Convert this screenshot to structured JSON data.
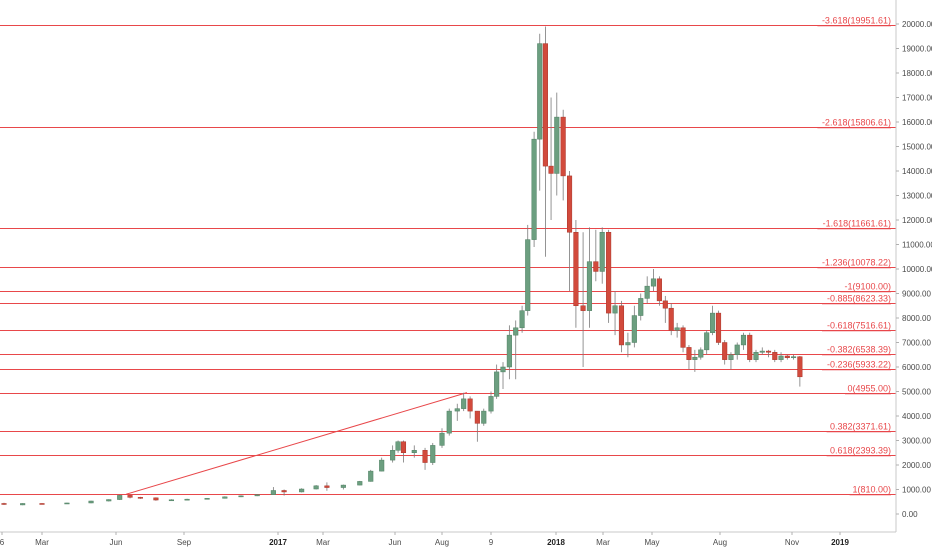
{
  "colors": {
    "up": "#6c9f80",
    "down": "#d24a3c",
    "fib_line": "#e8474a",
    "trend_line": "#e8474a",
    "axis_text": "#4a4a4a",
    "background": "#ffffff"
  },
  "chart_data": {
    "type": "candlestick",
    "interval": "weekly",
    "y_axis": {
      "range": [
        -500,
        20800
      ],
      "ticks": [
        "0.00",
        "1000.00",
        "2000.00",
        "3000.00",
        "4000.00",
        "5000.00",
        "6000.00",
        "7000.00",
        "8000.00",
        "9000.00",
        "10000.00",
        "11000.00",
        "12000.00",
        "13000.00",
        "14000.00",
        "15000.00",
        "16000.00",
        "17000.00",
        "18000.00",
        "19000.00",
        "20000.00"
      ],
      "tick_values": [
        0,
        1000,
        2000,
        3000,
        4000,
        5000,
        6000,
        7000,
        8000,
        9000,
        10000,
        11000,
        12000,
        13000,
        14000,
        15000,
        16000,
        17000,
        18000,
        19000,
        20000
      ],
      "position": "right"
    },
    "x_axis": {
      "ticks": [
        {
          "label": "6",
          "date": "2016-01-01",
          "bold": false
        },
        {
          "label": "Mar",
          "date": "2016-03-01",
          "bold": false
        },
        {
          "label": "Jun",
          "date": "2016-06-01",
          "bold": false
        },
        {
          "label": "Sep",
          "date": "2016-09-01",
          "bold": false
        },
        {
          "label": "2017",
          "date": "2017-01-01",
          "bold": true
        },
        {
          "label": "Mar",
          "date": "2017-03-01",
          "bold": false
        },
        {
          "label": "Jun",
          "date": "2017-06-01",
          "bold": false
        },
        {
          "label": "Aug",
          "date": "2017-08-01",
          "bold": false
        },
        {
          "label": "9",
          "date": "2017-10-01",
          "bold": false
        },
        {
          "label": "2018",
          "date": "2018-01-01",
          "bold": true
        },
        {
          "label": "Mar",
          "date": "2018-03-01",
          "bold": false
        },
        {
          "label": "May",
          "date": "2018-05-01",
          "bold": false
        },
        {
          "label": "Aug",
          "date": "2018-08-01",
          "bold": false
        },
        {
          "label": "Nov",
          "date": "2018-11-01",
          "bold": false
        },
        {
          "label": "2019",
          "date": "2019-01-01",
          "bold": true
        }
      ]
    },
    "fib_levels": [
      {
        "label": "-3.618(19951.61)",
        "value": 19951.61
      },
      {
        "label": "-2.618(15806.61)",
        "value": 15806.61
      },
      {
        "label": "-1.618(11661.61)",
        "value": 11661.61
      },
      {
        "label": "-1.236(10078.22)",
        "value": 10078.22
      },
      {
        "label": "-1(9100.00)",
        "value": 9100.0
      },
      {
        "label": "-0.885(8623.33)",
        "value": 8623.33
      },
      {
        "label": "-0.618(7516.61)",
        "value": 7516.61
      },
      {
        "label": "-0.382(6538.39)",
        "value": 6538.39
      },
      {
        "label": "-0.236(5933.22)",
        "value": 5933.22
      },
      {
        "label": "0(4955.00)",
        "value": 4955.0
      },
      {
        "label": "0.382(3371.61)",
        "value": 3371.61
      },
      {
        "label": "0.618(2393.39)",
        "value": 2393.39
      },
      {
        "label": "1(810.00)",
        "value": 810.0
      }
    ],
    "fib_start_date": "2015-12-01",
    "trend_line": {
      "from": {
        "date": "2016-06-15",
        "value": 810
      },
      "to": {
        "date": "2017-09-01",
        "value": 4955
      }
    },
    "candles": [
      {
        "d": "2015-12-07",
        "o": 390,
        "h": 420,
        "l": 360,
        "c": 380
      },
      {
        "d": "2016-01-04",
        "o": 430,
        "h": 460,
        "l": 370,
        "c": 410
      },
      {
        "d": "2016-02-01",
        "o": 370,
        "h": 440,
        "l": 360,
        "c": 430
      },
      {
        "d": "2016-03-01",
        "o": 430,
        "h": 440,
        "l": 400,
        "c": 415
      },
      {
        "d": "2016-04-01",
        "o": 415,
        "h": 460,
        "l": 410,
        "c": 450
      },
      {
        "d": "2016-05-01",
        "o": 450,
        "h": 540,
        "l": 440,
        "c": 530
      },
      {
        "d": "2016-05-23",
        "o": 530,
        "h": 600,
        "l": 510,
        "c": 590
      },
      {
        "d": "2016-06-06",
        "o": 590,
        "h": 780,
        "l": 570,
        "c": 760
      },
      {
        "d": "2016-06-20",
        "o": 760,
        "h": 780,
        "l": 640,
        "c": 680
      },
      {
        "d": "2016-07-04",
        "o": 680,
        "h": 700,
        "l": 620,
        "c": 660
      },
      {
        "d": "2016-07-25",
        "o": 660,
        "h": 680,
        "l": 540,
        "c": 570
      },
      {
        "d": "2016-08-15",
        "o": 570,
        "h": 600,
        "l": 550,
        "c": 580
      },
      {
        "d": "2016-09-05",
        "o": 580,
        "h": 620,
        "l": 570,
        "c": 605
      },
      {
        "d": "2016-10-01",
        "o": 605,
        "h": 650,
        "l": 600,
        "c": 640
      },
      {
        "d": "2016-10-24",
        "o": 640,
        "h": 720,
        "l": 630,
        "c": 700
      },
      {
        "d": "2016-11-14",
        "o": 700,
        "h": 760,
        "l": 690,
        "c": 740
      },
      {
        "d": "2016-12-05",
        "o": 740,
        "h": 800,
        "l": 730,
        "c": 790
      },
      {
        "d": "2016-12-26",
        "o": 790,
        "h": 1100,
        "l": 780,
        "c": 960
      },
      {
        "d": "2017-01-09",
        "o": 960,
        "h": 1000,
        "l": 750,
        "c": 900
      },
      {
        "d": "2017-02-01",
        "o": 900,
        "h": 1050,
        "l": 880,
        "c": 1020
      },
      {
        "d": "2017-02-20",
        "o": 1020,
        "h": 1180,
        "l": 1000,
        "c": 1150
      },
      {
        "d": "2017-03-06",
        "o": 1150,
        "h": 1290,
        "l": 950,
        "c": 1080
      },
      {
        "d": "2017-03-27",
        "o": 1080,
        "h": 1200,
        "l": 1000,
        "c": 1180
      },
      {
        "d": "2017-04-17",
        "o": 1180,
        "h": 1350,
        "l": 1170,
        "c": 1330
      },
      {
        "d": "2017-05-01",
        "o": 1330,
        "h": 1800,
        "l": 1320,
        "c": 1750
      },
      {
        "d": "2017-05-15",
        "o": 1750,
        "h": 2300,
        "l": 1740,
        "c": 2200
      },
      {
        "d": "2017-05-29",
        "o": 2200,
        "h": 2800,
        "l": 2100,
        "c": 2600
      },
      {
        "d": "2017-06-05",
        "o": 2600,
        "h": 3000,
        "l": 2500,
        "c": 2950
      },
      {
        "d": "2017-06-12",
        "o": 2950,
        "h": 3000,
        "l": 2100,
        "c": 2500
      },
      {
        "d": "2017-06-26",
        "o": 2500,
        "h": 2800,
        "l": 2300,
        "c": 2600
      },
      {
        "d": "2017-07-10",
        "o": 2600,
        "h": 2700,
        "l": 1800,
        "c": 2100
      },
      {
        "d": "2017-07-20",
        "o": 2100,
        "h": 2900,
        "l": 2000,
        "c": 2800
      },
      {
        "d": "2017-08-01",
        "o": 2800,
        "h": 3500,
        "l": 2700,
        "c": 3300
      },
      {
        "d": "2017-08-10",
        "o": 3300,
        "h": 4300,
        "l": 3200,
        "c": 4200
      },
      {
        "d": "2017-08-20",
        "o": 4200,
        "h": 4500,
        "l": 3800,
        "c": 4300
      },
      {
        "d": "2017-08-28",
        "o": 4300,
        "h": 4950,
        "l": 4200,
        "c": 4700
      },
      {
        "d": "2017-09-05",
        "o": 4700,
        "h": 4800,
        "l": 3900,
        "c": 4200
      },
      {
        "d": "2017-09-14",
        "o": 4200,
        "h": 4200,
        "l": 2950,
        "c": 3700
      },
      {
        "d": "2017-09-22",
        "o": 3700,
        "h": 4300,
        "l": 3600,
        "c": 4200
      },
      {
        "d": "2017-10-01",
        "o": 4200,
        "h": 5000,
        "l": 4100,
        "c": 4800
      },
      {
        "d": "2017-10-09",
        "o": 4800,
        "h": 6100,
        "l": 4700,
        "c": 5800
      },
      {
        "d": "2017-10-18",
        "o": 5800,
        "h": 6200,
        "l": 5100,
        "c": 6000
      },
      {
        "d": "2017-10-27",
        "o": 6000,
        "h": 7700,
        "l": 5500,
        "c": 7300
      },
      {
        "d": "2017-11-05",
        "o": 7300,
        "h": 7900,
        "l": 5500,
        "c": 7600
      },
      {
        "d": "2017-11-14",
        "o": 7600,
        "h": 8500,
        "l": 7400,
        "c": 8300
      },
      {
        "d": "2017-11-22",
        "o": 8300,
        "h": 11800,
        "l": 8100,
        "c": 11200
      },
      {
        "d": "2017-12-01",
        "o": 11200,
        "h": 15600,
        "l": 10900,
        "c": 15300
      },
      {
        "d": "2017-12-09",
        "o": 15300,
        "h": 19600,
        "l": 13200,
        "c": 19200
      },
      {
        "d": "2017-12-17",
        "o": 19200,
        "h": 19900,
        "l": 10500,
        "c": 14200
      },
      {
        "d": "2017-12-25",
        "o": 14200,
        "h": 17000,
        "l": 12000,
        "c": 13900
      },
      {
        "d": "2018-01-02",
        "o": 13900,
        "h": 17200,
        "l": 13000,
        "c": 16200
      },
      {
        "d": "2018-01-10",
        "o": 16200,
        "h": 16500,
        "l": 12800,
        "c": 13800
      },
      {
        "d": "2018-01-18",
        "o": 13800,
        "h": 14000,
        "l": 9100,
        "c": 11500
      },
      {
        "d": "2018-01-26",
        "o": 11500,
        "h": 12000,
        "l": 7600,
        "c": 8500
      },
      {
        "d": "2018-02-04",
        "o": 8500,
        "h": 11500,
        "l": 6000,
        "c": 8300
      },
      {
        "d": "2018-02-12",
        "o": 8300,
        "h": 11700,
        "l": 7600,
        "c": 10300
      },
      {
        "d": "2018-02-20",
        "o": 10300,
        "h": 11600,
        "l": 9500,
        "c": 9900
      },
      {
        "d": "2018-02-28",
        "o": 9900,
        "h": 11700,
        "l": 9400,
        "c": 11500
      },
      {
        "d": "2018-03-08",
        "o": 11500,
        "h": 11600,
        "l": 7800,
        "c": 8200
      },
      {
        "d": "2018-03-16",
        "o": 8200,
        "h": 9100,
        "l": 7300,
        "c": 8500
      },
      {
        "d": "2018-03-24",
        "o": 8500,
        "h": 8700,
        "l": 6600,
        "c": 6900
      },
      {
        "d": "2018-04-01",
        "o": 6900,
        "h": 7400,
        "l": 6400,
        "c": 7000
      },
      {
        "d": "2018-04-09",
        "o": 7000,
        "h": 8500,
        "l": 6800,
        "c": 8100
      },
      {
        "d": "2018-04-17",
        "o": 8100,
        "h": 9000,
        "l": 7900,
        "c": 8800
      },
      {
        "d": "2018-04-25",
        "o": 8800,
        "h": 9700,
        "l": 8600,
        "c": 9300
      },
      {
        "d": "2018-05-03",
        "o": 9300,
        "h": 10000,
        "l": 9100,
        "c": 9600
      },
      {
        "d": "2018-05-11",
        "o": 9600,
        "h": 9700,
        "l": 8500,
        "c": 8700
      },
      {
        "d": "2018-05-19",
        "o": 8700,
        "h": 8900,
        "l": 7800,
        "c": 8400
      },
      {
        "d": "2018-05-27",
        "o": 8400,
        "h": 8600,
        "l": 7300,
        "c": 7500
      },
      {
        "d": "2018-06-04",
        "o": 7500,
        "h": 7800,
        "l": 7200,
        "c": 7600
      },
      {
        "d": "2018-06-12",
        "o": 7600,
        "h": 7700,
        "l": 6600,
        "c": 6800
      },
      {
        "d": "2018-06-20",
        "o": 6800,
        "h": 6900,
        "l": 5900,
        "c": 6300
      },
      {
        "d": "2018-06-28",
        "o": 6300,
        "h": 6700,
        "l": 5800,
        "c": 6400
      },
      {
        "d": "2018-07-06",
        "o": 6400,
        "h": 6800,
        "l": 6300,
        "c": 6700
      },
      {
        "d": "2018-07-14",
        "o": 6700,
        "h": 7500,
        "l": 6500,
        "c": 7400
      },
      {
        "d": "2018-07-22",
        "o": 7400,
        "h": 8500,
        "l": 7300,
        "c": 8200
      },
      {
        "d": "2018-07-30",
        "o": 8200,
        "h": 8300,
        "l": 6900,
        "c": 7000
      },
      {
        "d": "2018-08-07",
        "o": 7000,
        "h": 7100,
        "l": 6100,
        "c": 6300
      },
      {
        "d": "2018-08-15",
        "o": 6300,
        "h": 6600,
        "l": 5900,
        "c": 6500
      },
      {
        "d": "2018-08-23",
        "o": 6500,
        "h": 7000,
        "l": 6300,
        "c": 6900
      },
      {
        "d": "2018-08-31",
        "o": 6900,
        "h": 7400,
        "l": 6700,
        "c": 7300
      },
      {
        "d": "2018-09-08",
        "o": 7300,
        "h": 7400,
        "l": 6200,
        "c": 6300
      },
      {
        "d": "2018-09-16",
        "o": 6300,
        "h": 6700,
        "l": 6200,
        "c": 6600
      },
      {
        "d": "2018-09-24",
        "o": 6600,
        "h": 6800,
        "l": 6500,
        "c": 6650
      },
      {
        "d": "2018-10-02",
        "o": 6650,
        "h": 6700,
        "l": 6400,
        "c": 6600
      },
      {
        "d": "2018-10-10",
        "o": 6600,
        "h": 6700,
        "l": 6200,
        "c": 6300
      },
      {
        "d": "2018-10-18",
        "o": 6300,
        "h": 6600,
        "l": 6200,
        "c": 6450
      },
      {
        "d": "2018-10-26",
        "o": 6450,
        "h": 6500,
        "l": 6300,
        "c": 6380
      },
      {
        "d": "2018-11-03",
        "o": 6380,
        "h": 6500,
        "l": 6300,
        "c": 6420
      },
      {
        "d": "2018-11-11",
        "o": 6420,
        "h": 6450,
        "l": 5200,
        "c": 5600
      }
    ]
  }
}
